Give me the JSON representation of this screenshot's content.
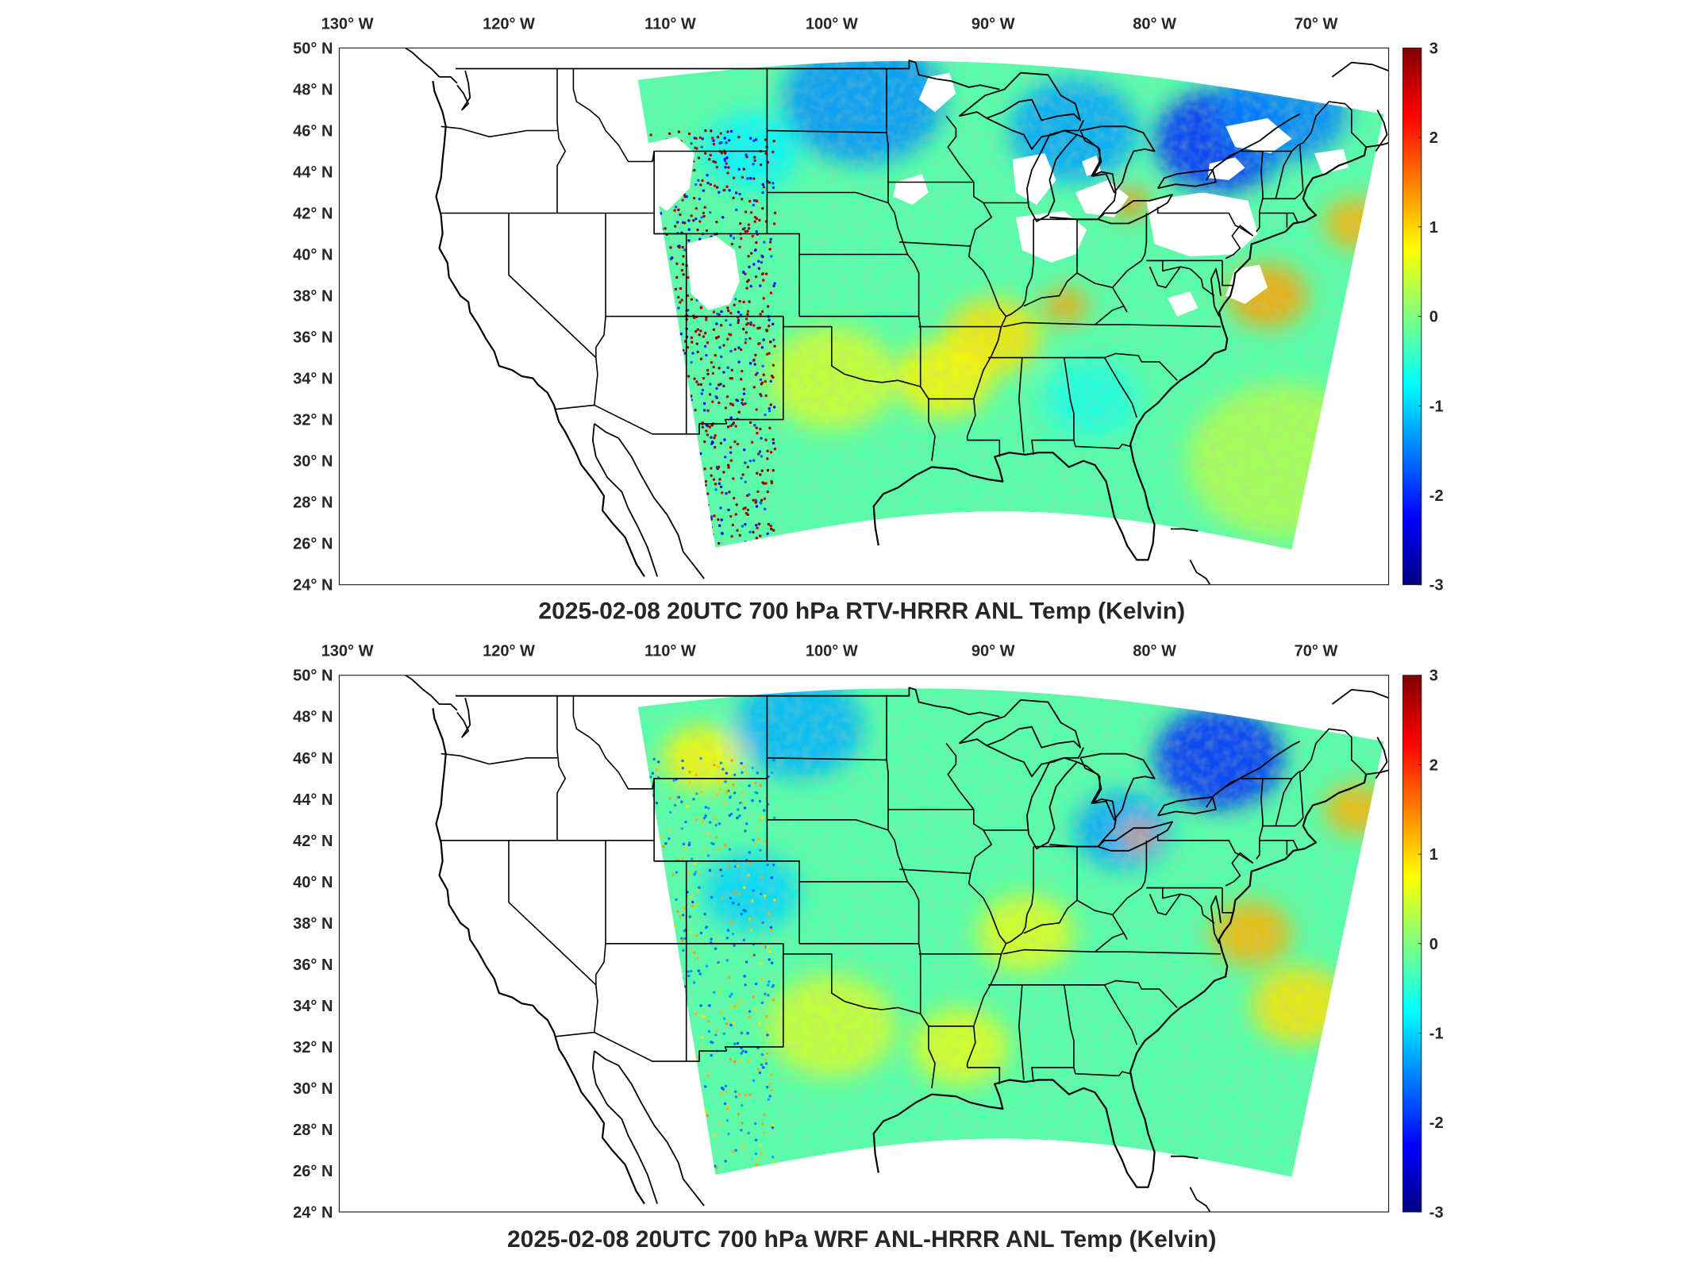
{
  "panels": [
    {
      "title": "2025-02-08 20UTC 700 hPa RTV-HRRR ANL Temp (Kelvin)",
      "variant": "rtv",
      "field_blobs": [
        {
          "lon": -98,
          "lat": 47.5,
          "r": 5,
          "v": -1.4
        },
        {
          "lon": -76,
          "lat": 45.5,
          "r": 4,
          "v": -2.0
        },
        {
          "lon": -72,
          "lat": 47.0,
          "r": 4,
          "v": -1.5
        },
        {
          "lon": -85,
          "lat": 46.0,
          "r": 4,
          "v": -1.3
        },
        {
          "lon": -90,
          "lat": 36.0,
          "r": 3,
          "v": 0.9
        },
        {
          "lon": -93,
          "lat": 34.0,
          "r": 3,
          "v": 0.8
        },
        {
          "lon": -73,
          "lat": 38.0,
          "r": 2.5,
          "v": 1.3
        },
        {
          "lon": -67.5,
          "lat": 41.5,
          "r": 2,
          "v": 1.2
        },
        {
          "lon": -81.5,
          "lat": 42.5,
          "r": 1.2,
          "v": 1.4
        },
        {
          "lon": -85.5,
          "lat": 37.5,
          "r": 1.4,
          "v": 1.3
        },
        {
          "lon": -100,
          "lat": 34.0,
          "r": 4,
          "v": 0.5
        },
        {
          "lon": -72,
          "lat": 30.0,
          "r": 6,
          "v": 0.3
        },
        {
          "lon": -105,
          "lat": 45.0,
          "r": 3,
          "v": -0.8
        },
        {
          "lon": -84,
          "lat": 33.0,
          "r": 3,
          "v": -0.6
        }
      ]
    },
    {
      "title": "2025-02-08 20UTC 700 hPa WRF ANL-HRRR ANL Temp (Kelvin)",
      "variant": "wrf",
      "field_blobs": [
        {
          "lon": -76,
          "lat": 46.0,
          "r": 4,
          "v": -2.0
        },
        {
          "lon": -102,
          "lat": 47.5,
          "r": 4,
          "v": -1.2
        },
        {
          "lon": -82,
          "lat": 42.5,
          "r": 3,
          "v": -1.3
        },
        {
          "lon": -105,
          "lat": 39.5,
          "r": 3,
          "v": -1.0
        },
        {
          "lon": -88,
          "lat": 37.5,
          "r": 3,
          "v": 0.6
        },
        {
          "lon": -108,
          "lat": 46.0,
          "r": 2.5,
          "v": 0.8
        },
        {
          "lon": -74,
          "lat": 37.5,
          "r": 2.5,
          "v": 1.2
        },
        {
          "lon": -67.5,
          "lat": 43.5,
          "r": 2,
          "v": 1.2
        },
        {
          "lon": -71,
          "lat": 34.0,
          "r": 3,
          "v": 0.9
        },
        {
          "lon": -100,
          "lat": 33.0,
          "r": 4,
          "v": 0.5
        },
        {
          "lon": -92,
          "lat": 32.0,
          "r": 3,
          "v": 0.6
        },
        {
          "lon": -81,
          "lat": 42.2,
          "r": 1.0,
          "v": 1.4
        }
      ]
    }
  ],
  "lon_ticks": [
    "130° W",
    "120° W",
    "110° W",
    "100° W",
    "90° W",
    "80° W",
    "70° W"
  ],
  "lat_ticks": [
    "50° N",
    "48° N",
    "46° N",
    "44° N",
    "42° N",
    "40° N",
    "38° N",
    "36° N",
    "34° N",
    "32° N",
    "30° N",
    "28° N",
    "26° N",
    "24° N"
  ],
  "colorbar_ticks": [
    "3",
    "2",
    "1",
    "0",
    "-1",
    "-2",
    "-3"
  ],
  "colorbar_range": [
    -3,
    3
  ],
  "colormap": "jet",
  "map_extent": {
    "lon_min": -130.5,
    "lon_max": -65.5,
    "lat_min": 24,
    "lat_max": 50
  }
}
